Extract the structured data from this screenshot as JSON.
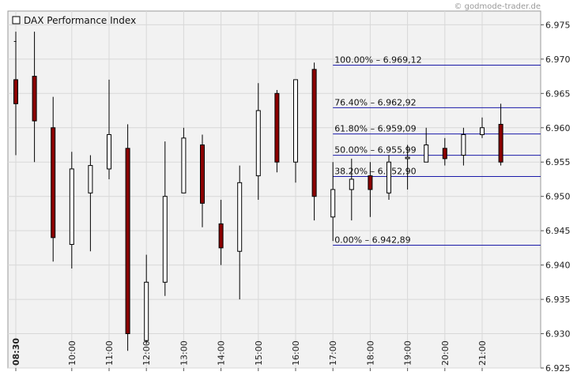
{
  "watermark": "© godmode-trader.de",
  "chart_data": {
    "type": "candlestick",
    "title": "DAX Performance Index",
    "legend_position": "top-left",
    "legend_marker": "-",
    "ylim": [
      6925,
      6977
    ],
    "y_ticks": [
      6925,
      6930,
      6935,
      6940,
      6945,
      6950,
      6955,
      6960,
      6965,
      6970,
      6975
    ],
    "y_tick_labels": [
      "6.925",
      "6.930",
      "6.935",
      "6.940",
      "6.945",
      "6.950",
      "6.955",
      "6.960",
      "6.965",
      "6.970",
      "6.975"
    ],
    "y_axis_position": "right",
    "grid": true,
    "x_tick_labels": [
      "08:30",
      "10:00",
      "11:00",
      "12:00",
      "13:00",
      "14:00",
      "15:00",
      "16:00",
      "17:00",
      "18:00",
      "19:00",
      "20:00",
      "21:00"
    ],
    "x_tick_positions": [
      0,
      3,
      5,
      7,
      9,
      11,
      13,
      15,
      17,
      19,
      21,
      23,
      25
    ],
    "candles": [
      {
        "o": 6967.0,
        "h": 6974.0,
        "l": 6956.0,
        "c": 6963.5
      },
      {
        "o": 6967.5,
        "h": 6974.0,
        "l": 6955.0,
        "c": 6961.0
      },
      {
        "o": 6960.0,
        "h": 6964.5,
        "l": 6940.5,
        "c": 6944.0
      },
      {
        "o": 6943.0,
        "h": 6956.5,
        "l": 6939.5,
        "c": 6954.0
      },
      {
        "o": 6950.5,
        "h": 6956.0,
        "l": 6942.0,
        "c": 6954.5
      },
      {
        "o": 6954.0,
        "h": 6967.0,
        "l": 6952.5,
        "c": 6959.0
      },
      {
        "o": 6957.0,
        "h": 6960.5,
        "l": 6927.5,
        "c": 6930.0
      },
      {
        "o": 6929.0,
        "h": 6941.5,
        "l": 6928.5,
        "c": 6937.5
      },
      {
        "o": 6937.5,
        "h": 6958.0,
        "l": 6935.5,
        "c": 6950.0
      },
      {
        "o": 6950.5,
        "h": 6960.0,
        "l": 6950.5,
        "c": 6958.5
      },
      {
        "o": 6957.5,
        "h": 6959.0,
        "l": 6945.5,
        "c": 6949.0
      },
      {
        "o": 6946.0,
        "h": 6949.5,
        "l": 6940.0,
        "c": 6942.5
      },
      {
        "o": 6942.0,
        "h": 6954.5,
        "l": 6935.0,
        "c": 6952.0
      },
      {
        "o": 6953.0,
        "h": 6966.5,
        "l": 6949.5,
        "c": 6962.5
      },
      {
        "o": 6965.0,
        "h": 6965.5,
        "l": 6953.5,
        "c": 6955.0
      },
      {
        "o": 6955.0,
        "h": 6967.0,
        "l": 6952.0,
        "c": 6967.0
      },
      {
        "o": 6968.5,
        "h": 6969.5,
        "l": 6946.5,
        "c": 6950.0
      },
      {
        "o": 6947.0,
        "h": 6955.0,
        "l": 6943.5,
        "c": 6951.0
      },
      {
        "o": 6951.0,
        "h": 6955.5,
        "l": 6946.5,
        "c": 6952.5
      },
      {
        "o": 6953.0,
        "h": 6955.0,
        "l": 6947.0,
        "c": 6951.0
      },
      {
        "o": 6950.5,
        "h": 6956.0,
        "l": 6949.5,
        "c": 6955.0
      },
      {
        "o": 6955.5,
        "h": 6957.5,
        "l": 6951.0,
        "c": 6955.7
      },
      {
        "o": 6955.0,
        "h": 6960.0,
        "l": 6955.0,
        "c": 6957.5
      },
      {
        "o": 6957.0,
        "h": 6958.5,
        "l": 6954.5,
        "c": 6955.5
      },
      {
        "o": 6956.0,
        "h": 6960.0,
        "l": 6954.5,
        "c": 6959.0
      },
      {
        "o": 6959.0,
        "h": 6961.5,
        "l": 6958.5,
        "c": 6960.0
      },
      {
        "o": 6960.5,
        "h": 6963.5,
        "l": 6954.5,
        "c": 6955.0
      }
    ],
    "fibonacci": {
      "start_index": 17,
      "levels": [
        {
          "label": "100.00% – 6.969,12",
          "value": 6969.12
        },
        {
          "label": "76.40% – 6.962,92",
          "value": 6962.92
        },
        {
          "label": "61.80% – 6.959,09",
          "value": 6959.09
        },
        {
          "label": "50.00% – 6.955,99",
          "value": 6955.99
        },
        {
          "label": "38.20% – 6.952,90",
          "value": 6952.9
        },
        {
          "label": "0.00% – 6.942,89",
          "value": 6942.89
        }
      ]
    },
    "colors": {
      "bearish": "#8b0000",
      "bullish": "#ffffff",
      "outline": "#000000",
      "fib_line": "#1a1aa8",
      "plot_background": "#f2f2f2",
      "grid": "#d8d8d8"
    }
  }
}
